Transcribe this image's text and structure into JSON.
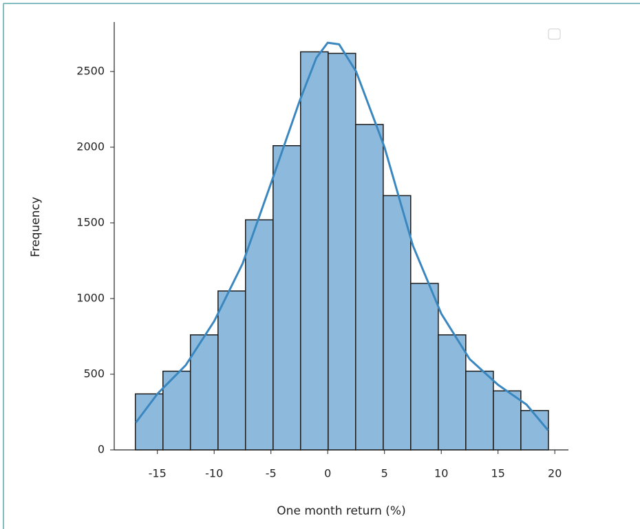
{
  "chart_data": {
    "type": "histogram",
    "x_label": "One month return (%)",
    "y_label": "Frequency",
    "bins": [
      -16.94,
      -14.51,
      -12.09,
      -9.66,
      -7.24,
      -4.81,
      -2.39,
      0.04,
      2.46,
      4.89,
      7.31,
      9.74,
      12.16,
      14.59,
      17.01,
      19.44
    ],
    "values": [
      370,
      520,
      760,
      1050,
      1520,
      2010,
      2630,
      2620,
      2150,
      1680,
      1100,
      760,
      520,
      390,
      260
    ],
    "color": "#8dbadc",
    "edge_color": "#1a1a1a",
    "kde": {
      "color": "#3a87c0",
      "x": [
        -16.9,
        -15,
        -12.5,
        -10,
        -7.5,
        -5,
        -2.5,
        -1,
        0,
        1,
        2.5,
        5,
        7.5,
        10,
        12.5,
        15,
        17.5,
        19.4
      ],
      "y": [
        180,
        370,
        560,
        850,
        1230,
        1760,
        2300,
        2590,
        2690,
        2680,
        2500,
        2000,
        1350,
        900,
        600,
        430,
        300,
        130
      ]
    },
    "xlim": [
      -18.8,
      21.2
    ],
    "ylim": [
      0,
      2827
    ],
    "xticks": [
      -15,
      -10,
      -5,
      0,
      5,
      10,
      15,
      20
    ],
    "yticks": [
      0,
      500,
      1000,
      1500,
      2000,
      2500
    ]
  }
}
